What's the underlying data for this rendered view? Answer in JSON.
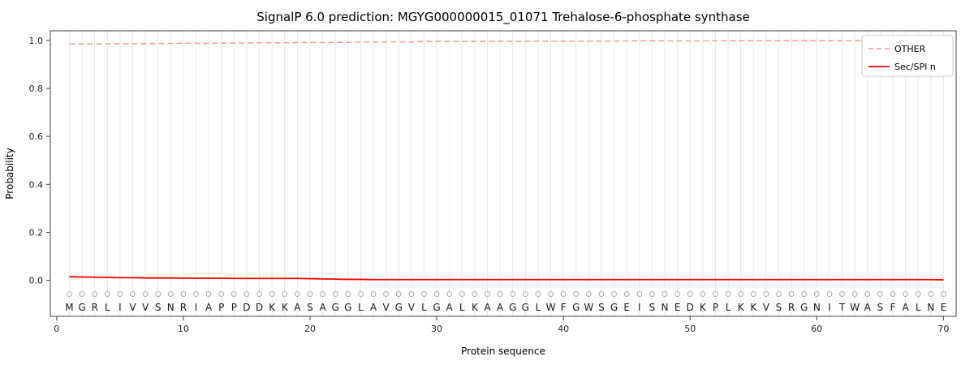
{
  "chart_data": {
    "type": "line",
    "title": "SignalP 6.0 prediction: MGYG000000015_01071 Trehalose-6-phosphate synthase",
    "xlabel": "Protein sequence",
    "ylabel": "Probability",
    "xlim": [
      -0.5,
      71
    ],
    "ylim": [
      -0.15,
      1.04
    ],
    "xticks": [
      0,
      10,
      20,
      30,
      40,
      50,
      60,
      70
    ],
    "yticks": [
      0.0,
      0.2,
      0.4,
      0.6,
      0.8,
      1.0
    ],
    "grid": "vertical-per-residue",
    "legend_position": "upper right",
    "sequence": "MGRLIVVSNRIAPPDDKKASAGGLAVGVLGALKAAGGLWFGWSGEISNEDKPLKKVSRGNITWASFALNE",
    "marker_row": "OOOOOOOOOOOOOOOOOOOOOOOOOOOOOOOOOOOOOOOOOOOOOOOOOOOOOOOOOOOOOOOOOOOOOO",
    "series": [
      {
        "name": "OTHER",
        "style": "dashed",
        "color": "#ff9999",
        "values": [
          0.985,
          0.985,
          0.985,
          0.986,
          0.986,
          0.986,
          0.987,
          0.987,
          0.987,
          0.988,
          0.988,
          0.988,
          0.989,
          0.989,
          0.989,
          0.99,
          0.99,
          0.99,
          0.991,
          0.991,
          0.991,
          0.992,
          0.992,
          0.993,
          0.993,
          0.994,
          0.994,
          0.994,
          0.995,
          0.995,
          0.995,
          0.995,
          0.996,
          0.996,
          0.996,
          0.996,
          0.996,
          0.997,
          0.997,
          0.997,
          0.997,
          0.997,
          0.997,
          0.997,
          0.998,
          0.998,
          0.998,
          0.998,
          0.998,
          0.998,
          0.998,
          0.998,
          0.998,
          0.999,
          0.999,
          0.999,
          0.999,
          0.999,
          0.999,
          0.999,
          0.999,
          0.999,
          0.999,
          0.999,
          0.999,
          0.999,
          0.999,
          0.999,
          0.999,
          0.999
        ]
      },
      {
        "name": "Sec/SPI n",
        "style": "solid",
        "color": "#ff0000",
        "values": [
          0.015,
          0.014,
          0.013,
          0.012,
          0.011,
          0.011,
          0.01,
          0.01,
          0.01,
          0.009,
          0.009,
          0.009,
          0.009,
          0.008,
          0.008,
          0.008,
          0.008,
          0.008,
          0.008,
          0.007,
          0.006,
          0.005,
          0.004,
          0.004,
          0.003,
          0.003,
          0.003,
          0.003,
          0.003,
          0.003,
          0.003,
          0.003,
          0.003,
          0.003,
          0.003,
          0.003,
          0.003,
          0.003,
          0.003,
          0.003,
          0.003,
          0.003,
          0.003,
          0.003,
          0.003,
          0.003,
          0.003,
          0.003,
          0.003,
          0.003,
          0.003,
          0.003,
          0.003,
          0.003,
          0.003,
          0.003,
          0.003,
          0.003,
          0.003,
          0.003,
          0.003,
          0.003,
          0.003,
          0.003,
          0.003,
          0.003,
          0.003,
          0.003,
          0.003,
          0.002
        ]
      }
    ],
    "colors": {
      "grid": "#e8e8e8",
      "frame": "#444444",
      "tick_label": "#222222",
      "marker_row": "#aaaaaa",
      "sequence_letter": "#1a1a1a",
      "legend_border": "#cccccc"
    }
  }
}
